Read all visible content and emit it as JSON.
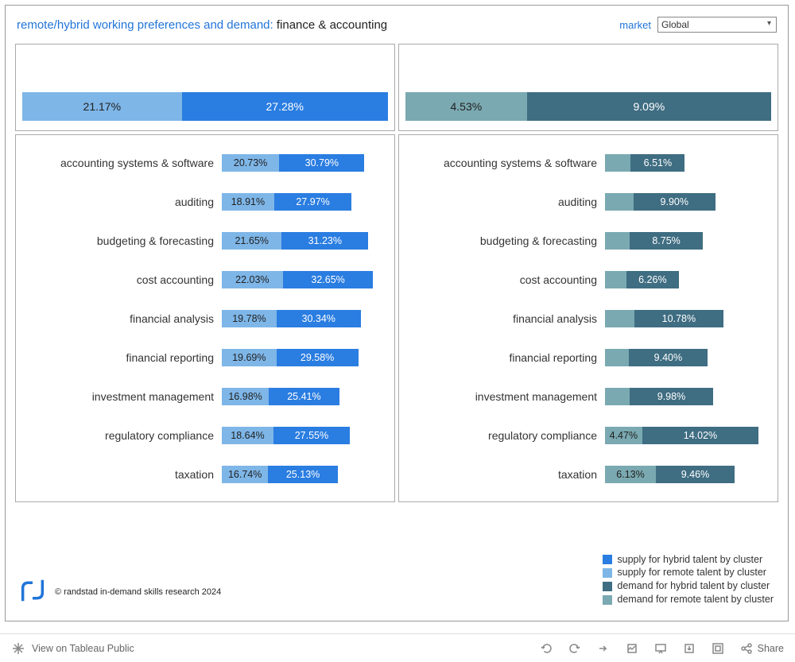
{
  "header": {
    "title_prefix": "remote/hybrid working preferences and demand:",
    "title_suffix": "finance & accounting",
    "market_label": "market",
    "market_value": "Global"
  },
  "colors": {
    "supply_remote": "#7eb6e8",
    "supply_hybrid": "#2a7de1",
    "demand_remote": "#7aa9b1",
    "demand_hybrid": "#3f6d82",
    "panel_border": "#aaaaaa",
    "text_on_light": "#222222",
    "text_on_dark": "#ffffff"
  },
  "top_supply": {
    "scale_max": 100,
    "remote": {
      "value": 21.17,
      "label": "21.17%",
      "width_pct": 43.6
    },
    "hybrid": {
      "value": 27.28,
      "label": "27.28%",
      "width_pct": 56.4
    }
  },
  "top_demand": {
    "scale_max": 100,
    "remote": {
      "value": 4.53,
      "label": "4.53%",
      "width_pct": 33.2
    },
    "hybrid": {
      "value": 9.09,
      "label": "9.09%",
      "width_pct": 66.8
    }
  },
  "supply_rows": {
    "scale_max": 60,
    "items": [
      {
        "label": "accounting systems & software",
        "remote": {
          "v": 20.73,
          "t": "20.73%"
        },
        "hybrid": {
          "v": 30.79,
          "t": "30.79%"
        }
      },
      {
        "label": "auditing",
        "remote": {
          "v": 18.91,
          "t": "18.91%"
        },
        "hybrid": {
          "v": 27.97,
          "t": "27.97%"
        }
      },
      {
        "label": "budgeting & forecasting",
        "remote": {
          "v": 21.65,
          "t": "21.65%"
        },
        "hybrid": {
          "v": 31.23,
          "t": "31.23%"
        }
      },
      {
        "label": "cost accounting",
        "remote": {
          "v": 22.03,
          "t": "22.03%"
        },
        "hybrid": {
          "v": 32.65,
          "t": "32.65%"
        }
      },
      {
        "label": "financial analysis",
        "remote": {
          "v": 19.78,
          "t": "19.78%"
        },
        "hybrid": {
          "v": 30.34,
          "t": "30.34%"
        }
      },
      {
        "label": "financial reporting",
        "remote": {
          "v": 19.69,
          "t": "19.69%"
        },
        "hybrid": {
          "v": 29.58,
          "t": "29.58%"
        }
      },
      {
        "label": "investment management",
        "remote": {
          "v": 16.98,
          "t": "16.98%"
        },
        "hybrid": {
          "v": 25.41,
          "t": "25.41%"
        }
      },
      {
        "label": "regulatory compliance",
        "remote": {
          "v": 18.64,
          "t": "18.64%"
        },
        "hybrid": {
          "v": 27.55,
          "t": "27.55%"
        }
      },
      {
        "label": "taxation",
        "remote": {
          "v": 16.74,
          "t": "16.74%"
        },
        "hybrid": {
          "v": 25.13,
          "t": "25.13%"
        }
      }
    ]
  },
  "demand_rows": {
    "scale_max": 20,
    "label_threshold": 4.0,
    "items": [
      {
        "label": "accounting systems & software",
        "remote": {
          "v": 3.1,
          "t": ""
        },
        "hybrid": {
          "v": 6.51,
          "t": "6.51%"
        }
      },
      {
        "label": "auditing",
        "remote": {
          "v": 3.4,
          "t": ""
        },
        "hybrid": {
          "v": 9.9,
          "t": "9.90%"
        }
      },
      {
        "label": "budgeting & forecasting",
        "remote": {
          "v": 3.0,
          "t": ""
        },
        "hybrid": {
          "v": 8.75,
          "t": "8.75%"
        }
      },
      {
        "label": "cost accounting",
        "remote": {
          "v": 2.6,
          "t": ""
        },
        "hybrid": {
          "v": 6.26,
          "t": "6.26%"
        }
      },
      {
        "label": "financial analysis",
        "remote": {
          "v": 3.5,
          "t": ""
        },
        "hybrid": {
          "v": 10.78,
          "t": "10.78%"
        }
      },
      {
        "label": "financial reporting",
        "remote": {
          "v": 2.9,
          "t": ""
        },
        "hybrid": {
          "v": 9.4,
          "t": "9.40%"
        }
      },
      {
        "label": "investment management",
        "remote": {
          "v": 3.0,
          "t": ""
        },
        "hybrid": {
          "v": 9.98,
          "t": "9.98%"
        }
      },
      {
        "label": "regulatory compliance",
        "remote": {
          "v": 4.47,
          "t": "4.47%"
        },
        "hybrid": {
          "v": 14.02,
          "t": "14.02%"
        }
      },
      {
        "label": "taxation",
        "remote": {
          "v": 6.13,
          "t": "6.13%"
        },
        "hybrid": {
          "v": 9.46,
          "t": "9.46%"
        }
      }
    ]
  },
  "legend": {
    "items": [
      {
        "swatch": "#2a7de1",
        "text": "supply for hybrid talent by cluster"
      },
      {
        "swatch": "#7eb6e8",
        "text": "supply for remote talent by cluster"
      },
      {
        "swatch": "#3f6d82",
        "text": "demand for hybrid talent by cluster"
      },
      {
        "swatch": "#7aa9b1",
        "text": "demand for remote talent by cluster"
      }
    ]
  },
  "footer": {
    "credit": "© randstad in-demand skills research 2024"
  },
  "toolbar": {
    "view_label": "View on Tableau Public",
    "share_label": "Share"
  }
}
